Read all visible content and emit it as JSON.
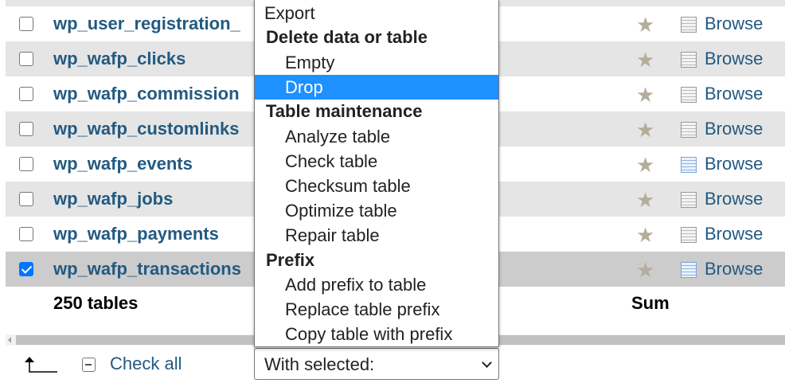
{
  "tables": [
    {
      "name": "wp_user_registration_",
      "checked": false,
      "browse_icon": "table-grey"
    },
    {
      "name": "wp_wafp_clicks",
      "checked": false,
      "browse_icon": "table-grey"
    },
    {
      "name": "wp_wafp_commission",
      "checked": false,
      "browse_icon": "table-grey"
    },
    {
      "name": "wp_wafp_customlinks",
      "checked": false,
      "browse_icon": "table-grey"
    },
    {
      "name": "wp_wafp_events",
      "checked": false,
      "browse_icon": "table-blue"
    },
    {
      "name": "wp_wafp_jobs",
      "checked": false,
      "browse_icon": "table-grey"
    },
    {
      "name": "wp_wafp_payments",
      "checked": false,
      "browse_icon": "table-grey"
    },
    {
      "name": "wp_wafp_transactions",
      "checked": true,
      "browse_icon": "table-blue"
    }
  ],
  "browse_label": "Browse",
  "footer": {
    "count": "250 tables",
    "sum": "Sum"
  },
  "bulk": {
    "check_all": "Check all",
    "select_value": "With selected:"
  },
  "menu": {
    "export": "Export",
    "group_delete": "Delete data or table",
    "empty": "Empty",
    "drop": "Drop",
    "group_maint": "Table maintenance",
    "analyze": "Analyze table",
    "check": "Check table",
    "checksum": "Checksum table",
    "optimize": "Optimize table",
    "repair": "Repair table",
    "group_prefix": "Prefix",
    "add_prefix": "Add prefix to table",
    "replace_prefix": "Replace table prefix",
    "copy_prefix": "Copy table with prefix",
    "highlighted": "Drop"
  },
  "colors": {
    "link": "#235a81",
    "highlight": "#1e90ff",
    "checkbox": "#0075ff"
  }
}
